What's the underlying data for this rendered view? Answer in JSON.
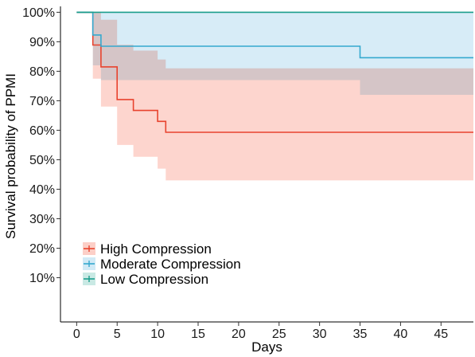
{
  "chart_data": {
    "type": "line",
    "step": true,
    "xlabel": "Days",
    "ylabel": "Survival probability of PPMI",
    "xlim": [
      -2,
      49
    ],
    "ylim": [
      -0.05,
      1.02
    ],
    "x_ticks": [
      0,
      5,
      10,
      15,
      20,
      25,
      30,
      35,
      40,
      45
    ],
    "y_ticks": [
      0.1,
      0.2,
      0.3,
      0.4,
      0.5,
      0.6,
      0.7,
      0.8,
      0.9,
      1.0
    ],
    "y_tick_labels": [
      "10%",
      "20%",
      "30%",
      "40%",
      "50%",
      "60%",
      "70%",
      "80%",
      "90%",
      "100%"
    ],
    "x_tick_labels": [
      "0",
      "5",
      "10",
      "15",
      "20",
      "25",
      "30",
      "35",
      "40",
      "45"
    ],
    "grid": false,
    "legend_position": "bottom-left",
    "series": [
      {
        "name": "High Compression",
        "color": "#e8432e",
        "band_color": "#fcc7bd",
        "x": [
          0,
          2,
          3,
          5,
          7,
          10,
          11,
          49
        ],
        "y": [
          1.0,
          0.889,
          0.815,
          0.704,
          0.667,
          0.63,
          0.593,
          0.593
        ],
        "lower": [
          1.0,
          0.775,
          0.68,
          0.55,
          0.51,
          0.47,
          0.43,
          0.43
        ],
        "upper": [
          1.0,
          1.0,
          0.975,
          0.89,
          0.87,
          0.84,
          0.81,
          0.81
        ]
      },
      {
        "name": "Moderate Compression",
        "color": "#35a9cf",
        "band_color": "#c9e6f4",
        "x": [
          0,
          2,
          3,
          35,
          49
        ],
        "y": [
          1.0,
          0.923,
          0.885,
          0.846,
          0.846
        ],
        "lower": [
          1.0,
          0.82,
          0.77,
          0.72,
          0.72
        ],
        "upper": [
          1.0,
          1.0,
          1.0,
          1.0,
          1.0
        ]
      },
      {
        "name": "Low Compression",
        "color": "#1a9e8c",
        "band_color": "#bfe5df",
        "x": [
          0,
          49
        ],
        "y": [
          1.0,
          1.0
        ],
        "lower": [
          1.0,
          1.0
        ],
        "upper": [
          1.0,
          1.0
        ]
      }
    ]
  }
}
